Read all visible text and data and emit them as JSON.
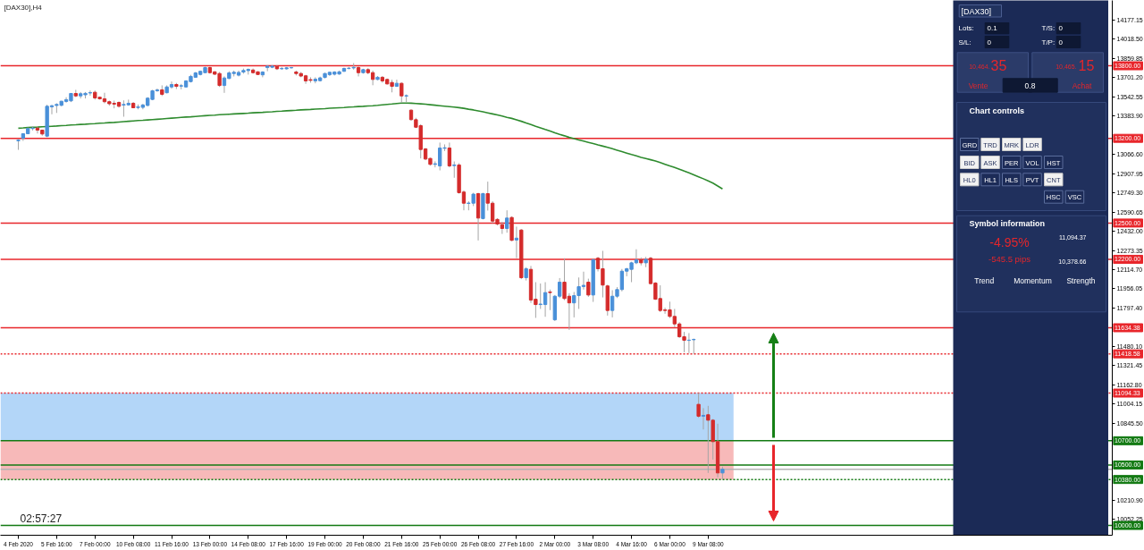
{
  "chart_data": [
    {
      "type": "candlestick",
      "title": "[DAX30],H4",
      "categories": [
        "4 Feb 2020",
        null,
        null,
        null,
        null,
        null,
        null,
        null,
        "5 Feb 16:00",
        null,
        null,
        null,
        null,
        null,
        null,
        null,
        "7 Feb 00:00",
        null,
        null,
        null,
        null,
        null,
        null,
        null,
        "10 Feb 08:00",
        null,
        null,
        null,
        null,
        null,
        null,
        null,
        "11 Feb 16:00",
        null,
        null,
        null,
        null,
        null,
        null,
        null,
        "13 Feb 00:00",
        null,
        null,
        null,
        null,
        null,
        null,
        null,
        "14 Feb 08:00",
        null,
        null,
        null,
        null,
        null,
        null,
        null,
        "17 Feb 16:00",
        null,
        null,
        null,
        null,
        null,
        null,
        null,
        "19 Feb 00:00",
        null,
        null,
        null,
        null,
        null,
        null,
        null,
        "20 Feb 08:00",
        null,
        null,
        null,
        null,
        null,
        null,
        null,
        "21 Feb 16:00",
        null,
        null,
        null,
        null,
        null,
        null,
        null,
        "25 Feb 00:00",
        null,
        null,
        null,
        null,
        null,
        null,
        null,
        "26 Feb 08:00",
        null,
        null,
        null,
        null,
        null,
        null,
        null,
        "27 Feb 16:00",
        null,
        null,
        null,
        null,
        null,
        null,
        null,
        "2 Mar 00:00",
        null,
        null,
        null,
        null,
        null,
        null,
        null,
        "3 Mar 08:00",
        null,
        null,
        null,
        null,
        null,
        null,
        null,
        "4 Mar 16:00",
        null,
        null,
        null,
        null,
        null,
        null,
        null,
        "6 Mar 00:00",
        null,
        null,
        null,
        null,
        null,
        null,
        null,
        "9 Mar 08:00",
        null,
        null,
        null
      ],
      "ohlc": [
        [
          13180,
          13194,
          13105,
          13185
        ],
        [
          13201,
          13240,
          13179,
          13238
        ],
        [
          13238,
          13290,
          13235,
          13281
        ],
        [
          13281,
          13300,
          13265,
          13285
        ],
        [
          13285,
          13300,
          13240,
          13268
        ],
        [
          13268,
          13270,
          13222,
          13236
        ],
        [
          13218,
          13478,
          13210,
          13465
        ],
        [
          13460,
          13476,
          13399,
          13470
        ],
        [
          13472,
          13490,
          13410,
          13480
        ],
        [
          13473,
          13510,
          13465,
          13507
        ],
        [
          13505,
          13540,
          13495,
          13520
        ],
        [
          13510,
          13575,
          13500,
          13571
        ],
        [
          13571,
          13601,
          13541,
          13551
        ],
        [
          13551,
          13583,
          13530,
          13569
        ],
        [
          13560,
          13583,
          13530,
          13572
        ],
        [
          13575,
          13595,
          13553,
          13578
        ],
        [
          13581,
          13595,
          13520,
          13534
        ],
        [
          13540,
          13545,
          13520,
          13527
        ],
        [
          13527,
          13577,
          13490,
          13503
        ],
        [
          13503,
          13512,
          13470,
          13486
        ],
        [
          13490,
          13512,
          13448,
          13483
        ],
        [
          13497,
          13505,
          13455,
          13465
        ],
        [
          13475,
          13514,
          13379,
          13480
        ],
        [
          13477,
          13520,
          13470,
          13490
        ],
        [
          13490,
          13500,
          13450,
          13453
        ],
        [
          13455,
          13480,
          13440,
          13460
        ],
        [
          13456,
          13485,
          13440,
          13476
        ],
        [
          13472,
          13540,
          13465,
          13532
        ],
        [
          13522,
          13601,
          13515,
          13593
        ],
        [
          13593,
          13612,
          13585,
          13600
        ],
        [
          13601,
          13638,
          13550,
          13564
        ],
        [
          13577,
          13638,
          13572,
          13625
        ],
        [
          13625,
          13670,
          13610,
          13645
        ],
        [
          13645,
          13658,
          13608,
          13630
        ],
        [
          13632,
          13650,
          13605,
          13635
        ],
        [
          13625,
          13680,
          13620,
          13675
        ],
        [
          13669,
          13725,
          13662,
          13712
        ],
        [
          13705,
          13749,
          13700,
          13741
        ],
        [
          13728,
          13760,
          13720,
          13754
        ],
        [
          13743,
          13793,
          13740,
          13785
        ],
        [
          13785,
          13793,
          13735,
          13743
        ],
        [
          13750,
          13755,
          13725,
          13730
        ],
        [
          13736,
          13749,
          13625,
          13637
        ],
        [
          13637,
          13712,
          13576,
          13699
        ],
        [
          13695,
          13755,
          13690,
          13741
        ],
        [
          13736,
          13760,
          13712,
          13746
        ],
        [
          13722,
          13760,
          13712,
          13745
        ],
        [
          13748,
          13777,
          13735,
          13761
        ],
        [
          13760,
          13777,
          13727,
          13770
        ],
        [
          13765,
          13777,
          13735,
          13743
        ],
        [
          13750,
          13755,
          13725,
          13728
        ],
        [
          13725,
          13755,
          13705,
          13748
        ],
        [
          13785,
          13805,
          13755,
          13797
        ],
        [
          13788,
          13805,
          13780,
          13797
        ],
        [
          13795,
          13805,
          13765,
          13775
        ],
        [
          13775,
          13790,
          13768,
          13778
        ],
        [
          13775,
          13790,
          13768,
          13783
        ],
        [
          13783,
          13790,
          13778,
          13785
        ],
        [
          13748,
          13760,
          13720,
          13736
        ],
        [
          13736,
          13748,
          13705,
          13715
        ],
        [
          13717,
          13725,
          13651,
          13675
        ],
        [
          13685,
          13705,
          13660,
          13680
        ],
        [
          13675,
          13705,
          13655,
          13689
        ],
        [
          13677,
          13710,
          13670,
          13700
        ],
        [
          13704,
          13742,
          13695,
          13736
        ],
        [
          13727,
          13750,
          13715,
          13746
        ],
        [
          13730,
          13755,
          13720,
          13748
        ],
        [
          13732,
          13760,
          13725,
          13750
        ],
        [
          13754,
          13785,
          13750,
          13778
        ],
        [
          13778,
          13790,
          13770,
          13780
        ],
        [
          13782,
          13822,
          13768,
          13787
        ],
        [
          13785,
          13795,
          13712,
          13743
        ],
        [
          13743,
          13775,
          13735,
          13768
        ],
        [
          13768,
          13780,
          13730,
          13743
        ],
        [
          13743,
          13760,
          13639,
          13687
        ],
        [
          13687,
          13715,
          13680,
          13705
        ],
        [
          13705,
          13715,
          13660,
          13675
        ],
        [
          13687,
          13694,
          13645,
          13650
        ],
        [
          13662,
          13685,
          13580,
          13630
        ],
        [
          13630,
          13685,
          13625,
          13655
        ],
        [
          13655,
          13662,
          13494,
          13551
        ],
        [
          13550,
          13563,
          13500,
          13553
        ],
        [
          13433,
          13440,
          13345,
          13355
        ],
        [
          13354,
          13370,
          13285,
          13292
        ],
        [
          13305,
          13317,
          13034,
          13108
        ],
        [
          13113,
          13120,
          13020,
          13029
        ],
        [
          13034,
          13040,
          12975,
          12985
        ],
        [
          12985,
          13010,
          12960,
          12990
        ],
        [
          12972,
          13165,
          12935,
          13120
        ],
        [
          13118,
          13150,
          13095,
          13122
        ],
        [
          13120,
          13165,
          12960,
          12972
        ],
        [
          12975,
          13009,
          12874,
          12980
        ],
        [
          12980,
          12995,
          12743,
          12751
        ],
        [
          12756,
          12770,
          12605,
          12664
        ],
        [
          12662,
          12680,
          12605,
          12665
        ],
        [
          12664,
          12750,
          12640,
          12739
        ],
        [
          12743,
          12750,
          12356,
          12541
        ],
        [
          12537,
          12750,
          12530,
          12743
        ],
        [
          12743,
          12842,
          12603,
          12664
        ],
        [
          12664,
          12680,
          12500,
          12516
        ],
        [
          12530,
          12540,
          12480,
          12492
        ],
        [
          12487,
          12510,
          12410,
          12455
        ],
        [
          12455,
          12605,
          12420,
          12541
        ],
        [
          12546,
          12555,
          12350,
          12357
        ],
        [
          12360,
          12470,
          12210,
          12375
        ],
        [
          12442,
          12450,
          12036,
          12048
        ],
        [
          12048,
          12135,
          12025,
          12122
        ],
        [
          12117,
          12145,
          11840,
          11863
        ],
        [
          11870,
          12011,
          11716,
          11826
        ],
        [
          11826,
          12000,
          11790,
          11830
        ],
        [
          11826,
          12011,
          11725,
          11925
        ],
        [
          11930,
          11950,
          11780,
          11925
        ],
        [
          11700,
          11905,
          11690,
          11895
        ],
        [
          11895,
          12045,
          11880,
          12011
        ],
        [
          12011,
          12209,
          11863,
          11876
        ],
        [
          11895,
          11920,
          11617,
          11840
        ],
        [
          11840,
          11930,
          11720,
          11900
        ],
        [
          11900,
          12050,
          11790,
          11974
        ],
        [
          11975,
          12098,
          11950,
          11985
        ],
        [
          12011,
          12040,
          11890,
          11905
        ],
        [
          11905,
          12209,
          11848,
          12196
        ],
        [
          12209,
          12220,
          12100,
          12122
        ],
        [
          12122,
          12270,
          11885,
          11987
        ],
        [
          11980,
          11990,
          11735,
          11777
        ],
        [
          11777,
          11945,
          11720,
          11895
        ],
        [
          11895,
          11970,
          11880,
          11950
        ],
        [
          11950,
          12120,
          11935,
          12102
        ],
        [
          12102,
          12130,
          12060,
          12122
        ],
        [
          12117,
          12180,
          12011,
          12171
        ],
        [
          12171,
          12283,
          12160,
          12196
        ],
        [
          12196,
          12215,
          12150,
          12171
        ],
        [
          12171,
          12220,
          12135,
          12200
        ],
        [
          12209,
          12220,
          11995,
          11999
        ],
        [
          12004,
          12011,
          11865,
          11870
        ],
        [
          11876,
          11985,
          11765,
          11777
        ],
        [
          11782,
          11800,
          11750,
          11777
        ],
        [
          11782,
          11850,
          11715,
          11728
        ],
        [
          11728,
          11790,
          11640,
          11666
        ],
        [
          11666,
          11680,
          11550,
          11560
        ],
        [
          11560,
          11600,
          11432,
          11531
        ],
        [
          11530,
          11590,
          11425,
          11532
        ],
        [
          11535,
          11545,
          11418,
          11538
        ],
        [
          11001,
          11094,
          10890,
          10903
        ],
        [
          10903,
          10970,
          10793,
          10910
        ],
        [
          10915,
          10989,
          10434,
          10870
        ],
        [
          10870,
          10880,
          10545,
          10693
        ],
        [
          10693,
          10841,
          10397,
          10434
        ],
        [
          10434,
          10486,
          10379,
          10464
        ]
      ],
      "colors": [
        "#4a90d9",
        "#4a90d9",
        "#4a90d9",
        "#4a90d9",
        "#d42b2b",
        "#d42b2b",
        "#4a90d9",
        "#4a90d9",
        "#4a90d9",
        "#4a90d9",
        "#4a90d9",
        "#4a90d9",
        "#d42b2b",
        "#4a90d9",
        "#4a90d9",
        "#4a90d9",
        "#d42b2b",
        "#d42b2b",
        "#d42b2b",
        "#d42b2b",
        "#d42b2b",
        "#d42b2b",
        "#4a90d9",
        "#4a90d9",
        "#d42b2b",
        "#4a90d9",
        "#4a90d9",
        "#4a90d9",
        "#4a90d9",
        "#4a90d9",
        "#d42b2b",
        "#4a90d9",
        "#4a90d9",
        "#d42b2b",
        "#4a90d9",
        "#4a90d9",
        "#4a90d9",
        "#4a90d9",
        "#4a90d9",
        "#4a90d9",
        "#d42b2b",
        "#d42b2b",
        "#d42b2b",
        "#4a90d9",
        "#4a90d9",
        "#4a90d9",
        "#4a90d9",
        "#4a90d9",
        "#4a90d9",
        "#d42b2b",
        "#d42b2b",
        "#4a90d9",
        "#4a90d9",
        "#4a90d9",
        "#d42b2b",
        "#4a90d9",
        "#4a90d9",
        "#4a90d9",
        "#d42b2b",
        "#d42b2b",
        "#d42b2b",
        "#d42b2b",
        "#4a90d9",
        "#4a90d9",
        "#4a90d9",
        "#4a90d9",
        "#4a90d9",
        "#4a90d9",
        "#4a90d9",
        "#4a90d9",
        "#4a90d9",
        "#d42b2b",
        "#4a90d9",
        "#d42b2b",
        "#d42b2b",
        "#4a90d9",
        "#d42b2b",
        "#d42b2b",
        "#d42b2b",
        "#4a90d9",
        "#d42b2b",
        "#4a90d9",
        "#d42b2b",
        "#d42b2b",
        "#d42b2b",
        "#d42b2b",
        "#d42b2b",
        "#4a90d9",
        "#4a90d9",
        "#4a90d9",
        "#d42b2b",
        "#4a90d9",
        "#d42b2b",
        "#d42b2b",
        "#4a90d9",
        "#4a90d9",
        "#d42b2b",
        "#4a90d9",
        "#d42b2b",
        "#d42b2b",
        "#d42b2b",
        "#d42b2b",
        "#4a90d9",
        "#d42b2b",
        "#4a90d9",
        "#d42b2b",
        "#4a90d9",
        "#d42b2b",
        "#d42b2b",
        "#4a90d9",
        "#4a90d9",
        "#d42b2b",
        "#4a90d9",
        "#4a90d9",
        "#d42b2b",
        "#d42b2b",
        "#4a90d9",
        "#4a90d9",
        "#4a90d9",
        "#d42b2b",
        "#4a90d9",
        "#d42b2b",
        "#d42b2b",
        "#d42b2b",
        "#4a90d9",
        "#4a90d9",
        "#4a90d9",
        "#4a90d9",
        "#4a90d9",
        "#4a90d9",
        "#d42b2b",
        "#4a90d9",
        "#d42b2b",
        "#d42b2b",
        "#d42b2b",
        "#d42b2b",
        "#d42b2b",
        "#d42b2b",
        "#d42b2b",
        "#d42b2b",
        "#4a90d9",
        "#4a90d9",
        "#d42b2b",
        "#4a90d9",
        "#d42b2b",
        "#d42b2b",
        "#d42b2b",
        "#4a90d9"
      ],
      "series": [
        {
          "type": "line",
          "color": "#2e8b2e",
          "values": [
            13284,
            13286,
            13289,
            13291,
            13293,
            13296,
            13298,
            13300,
            13302,
            13305,
            13307,
            13310,
            13312,
            13315,
            13317,
            13320,
            13322,
            13325,
            13327,
            13330,
            13332,
            13335,
            13338,
            13341,
            13344,
            13347,
            13349,
            13352,
            13355,
            13358,
            13361,
            13364,
            13367,
            13370,
            13373,
            13376,
            13378,
            13381,
            13384,
            13387,
            13390,
            13392,
            13395,
            13397,
            13399,
            13402,
            13404,
            13406,
            13408,
            13411,
            13413,
            13415,
            13418,
            13420,
            13423,
            13425,
            13428,
            13430,
            13432,
            13435,
            13437,
            13439,
            13442,
            13444,
            13446,
            13449,
            13451,
            13453,
            13455,
            13458,
            13460,
            13463,
            13465,
            13468,
            13470,
            13473,
            13477,
            13481,
            13484,
            13488,
            13492,
            13492,
            13491,
            13488,
            13485,
            13482,
            13478,
            13474,
            13470,
            13466,
            13462,
            13458,
            13454,
            13448,
            13441,
            13435,
            13427,
            13419,
            13411,
            13402,
            13393,
            13384,
            13374,
            13365,
            13353,
            13341,
            13327,
            13314,
            13300,
            13287,
            13273,
            13260,
            13246,
            13233,
            13221,
            13208,
            13198,
            13187,
            13177,
            13167,
            13157,
            13146,
            13136,
            13125,
            13114,
            13102,
            13090,
            13078,
            13066,
            13055,
            13043,
            13033,
            13023,
            13013,
            13000,
            12986,
            12972,
            12959,
            12945,
            12930,
            12915,
            12899,
            12882,
            12866,
            12848,
            12830,
            12806,
            12782
          ]
        }
      ],
      "ylim": [
        9919,
        14340
      ],
      "yticks": [
        {
          "value": 14177.15,
          "label": "14177.15"
        },
        {
          "value": 14018.5,
          "label": "14018.50"
        },
        {
          "value": 13859.85,
          "label": "13859.85"
        },
        {
          "value": 13701.2,
          "label": "13701.20"
        },
        {
          "value": 13542.55,
          "label": "13542.55"
        },
        {
          "value": 13383.9,
          "label": "13383.90"
        },
        {
          "value": 13066.6,
          "label": "13066.60"
        },
        {
          "value": 12907.95,
          "label": "12907.95"
        },
        {
          "value": 12749.3,
          "label": "12749.30"
        },
        {
          "value": 12590.65,
          "label": "12590.65"
        },
        {
          "value": 12432,
          "label": "12432.00"
        },
        {
          "value": 12273.35,
          "label": "12273.35"
        },
        {
          "value": 12114.7,
          "label": "12114.70"
        },
        {
          "value": 11956.05,
          "label": "11956.05"
        },
        {
          "value": 11797.4,
          "label": "11797.40"
        },
        {
          "value": 11480.1,
          "label": "11480.10"
        },
        {
          "value": 11321.45,
          "label": "11321.45"
        },
        {
          "value": 11162.8,
          "label": "11162.80"
        },
        {
          "value": 11004.15,
          "label": "11004.15"
        },
        {
          "value": 10845.5,
          "label": "10845.50"
        },
        {
          "value": 10210.9,
          "label": "10210.90"
        },
        {
          "value": 10052.25,
          "label": "10052.25"
        }
      ],
      "ref_lines": [
        {
          "axis": "y",
          "value": 13800,
          "label": "13800.00",
          "color": "#e8262b"
        },
        {
          "axis": "y",
          "value": 13200,
          "label": "13200.00",
          "color": "#e8262b"
        },
        {
          "axis": "y",
          "value": 12500,
          "label": "12500.00",
          "color": "#e8262b"
        },
        {
          "axis": "y",
          "value": 12200,
          "label": "12200.00",
          "color": "#e8262b"
        },
        {
          "axis": "y",
          "value": 11634.38,
          "label": "11634.38",
          "color": "#e8262b"
        },
        {
          "axis": "y",
          "value": 11418.58,
          "label": "11418.58",
          "color": "#e8262b",
          "line_style": "dotted"
        },
        {
          "axis": "y",
          "value": 11094.33,
          "label": "11094.33",
          "color": "#e8262b",
          "line_style": "dotted"
        },
        {
          "axis": "y",
          "value": 10700,
          "label": "10700.00",
          "color": "#137a13"
        },
        {
          "axis": "y",
          "value": 10500,
          "label": "10500.00",
          "color": "#137a13"
        },
        {
          "axis": "y",
          "value": 10464.35,
          "color": "#b4b4b4"
        },
        {
          "axis": "y",
          "value": 10380,
          "label": "10380.00",
          "color": "#137a13",
          "line_style": "dotted"
        },
        {
          "axis": "y",
          "value": 10000,
          "label": "10000.00",
          "color": "#137a13"
        }
      ],
      "bands": [
        {
          "axis": "y",
          "from": 10700,
          "to": 11094.33,
          "color": "#b3d6f8"
        },
        {
          "axis": "y",
          "from": 10380,
          "to": 10700,
          "color": "#f7b9b9"
        }
      ],
      "annotations": [
        "02:57:27"
      ]
    },
    {
      "type": "other",
      "annotations": [
        "[DAX30]",
        "Lots:",
        "0.1",
        "T/S:",
        "0",
        "S/L:",
        "0",
        "T/P:",
        "0",
        "10,464.",
        "35",
        "Vente",
        "0.8",
        "10,465.",
        "15",
        "Achat",
        "Chart controls",
        "GRD",
        "TRD",
        "MRK",
        "LDR",
        "BID",
        "ASK",
        "PER",
        "VOL",
        "HST",
        "HL0",
        "HL1",
        "HLS",
        "PVT",
        "CNT",
        "HSC",
        "VSC",
        "Symbol information",
        "-4.95%",
        "-545.5 pips",
        "11,094.37",
        "10,378.66",
        "Trend",
        "Momentum",
        "Strength"
      ]
    }
  ]
}
